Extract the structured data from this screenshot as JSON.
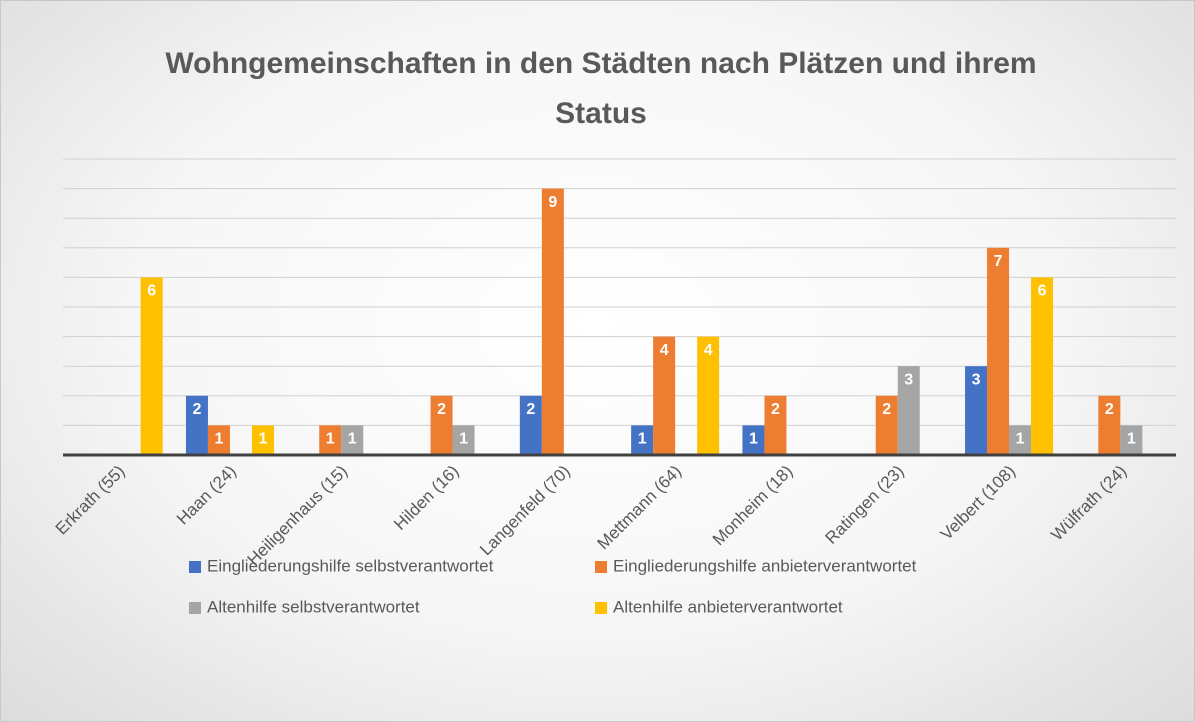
{
  "chart_data": {
    "type": "bar",
    "title": "Wohngemeinschaften in den Städten nach Plätzen und ihrem Status",
    "categories": [
      "Erkrath (55)",
      "Haan (24)",
      "Heiligenhaus (15)",
      "Hilden (16)",
      "Langenfeld (70)",
      "Mettmann (64)",
      "Monheim (18)",
      "Ratingen (23)",
      "Velbert (108)",
      "Wülfrath (24)"
    ],
    "series": [
      {
        "name": "Eingliederungshilfe selbstverantwortet",
        "color": "#4472c4",
        "values": [
          null,
          2,
          null,
          null,
          2,
          1,
          1,
          null,
          3,
          null
        ]
      },
      {
        "name": "Eingliederungshilfe anbieterverantwortet",
        "color": "#ed7d31",
        "values": [
          null,
          1,
          1,
          2,
          9,
          4,
          2,
          2,
          7,
          2
        ]
      },
      {
        "name": "Altenhilfe selbstverantwortet",
        "color": "#a5a5a5",
        "values": [
          null,
          null,
          1,
          1,
          null,
          null,
          null,
          3,
          1,
          1
        ]
      },
      {
        "name": "Altenhilfe anbieterverantwortet",
        "color": "#ffc000",
        "values": [
          6,
          1,
          null,
          null,
          null,
          4,
          null,
          null,
          6,
          null
        ]
      }
    ],
    "ylim": [
      0,
      10
    ],
    "yticks": [
      0,
      1,
      2,
      3,
      4,
      5,
      6,
      7,
      8,
      9,
      10
    ],
    "grid": true,
    "legend": "bottom"
  }
}
